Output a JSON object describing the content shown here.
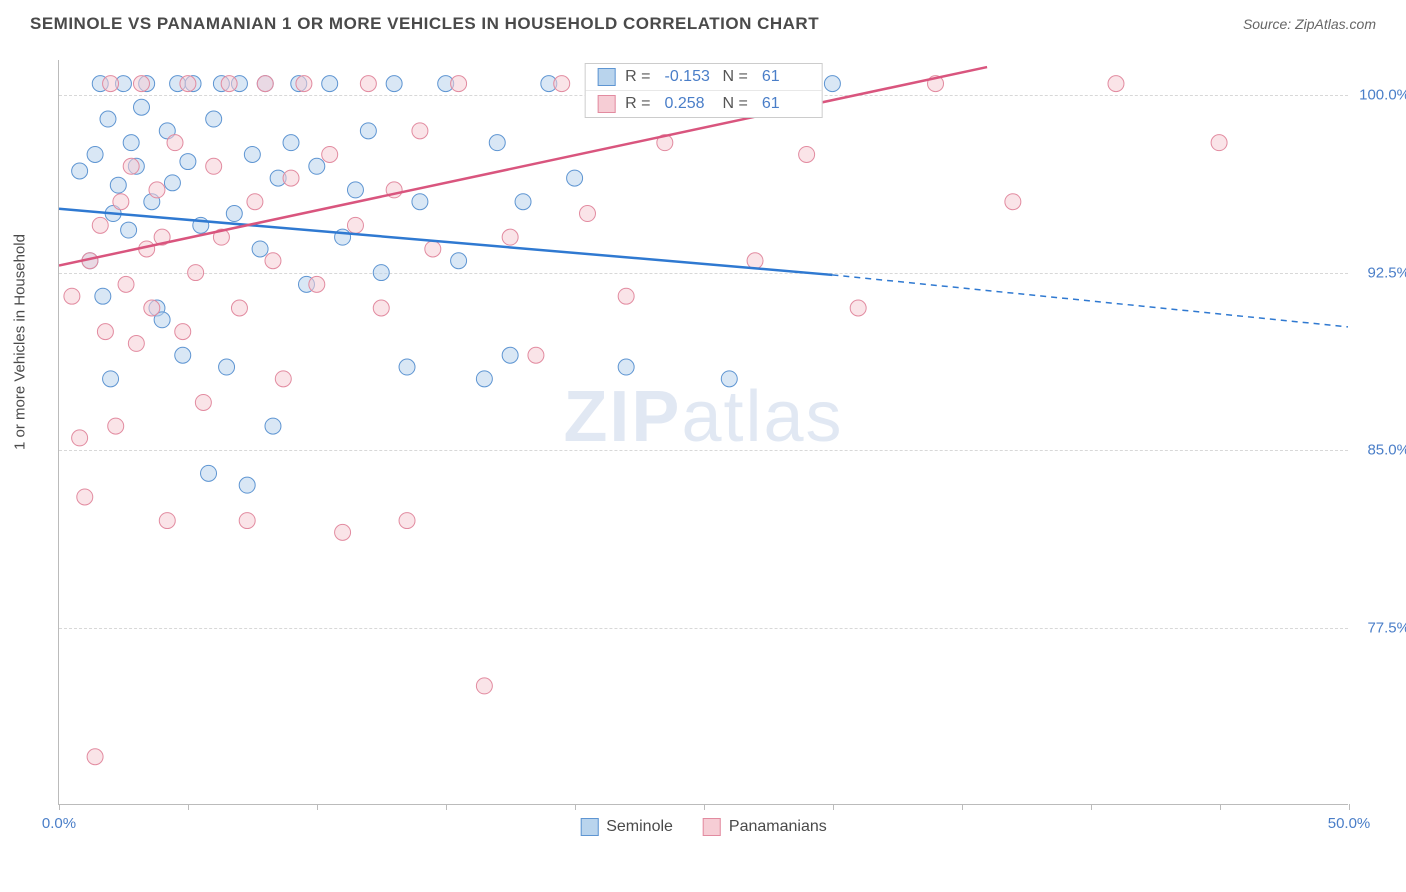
{
  "title": "SEMINOLE VS PANAMANIAN 1 OR MORE VEHICLES IN HOUSEHOLD CORRELATION CHART",
  "source": "Source: ZipAtlas.com",
  "y_axis_label": "1 or more Vehicles in Household",
  "watermark_bold": "ZIP",
  "watermark_light": "atlas",
  "chart": {
    "type": "scatter",
    "xlim": [
      0,
      50
    ],
    "ylim": [
      70,
      101.5
    ],
    "xtick_positions": [
      0,
      5,
      10,
      15,
      20,
      25,
      30,
      35,
      40,
      45,
      50
    ],
    "xtick_labels": {
      "0": "0.0%",
      "50": "50.0%"
    },
    "ytick_positions": [
      77.5,
      85.0,
      92.5,
      100.0
    ],
    "ytick_labels": [
      "77.5%",
      "85.0%",
      "92.5%",
      "100.0%"
    ],
    "background_color": "#ffffff",
    "grid_color": "#d8d8d8",
    "axis_color": "#bbbbbb",
    "marker_radius": 8,
    "marker_opacity": 0.55,
    "series": [
      {
        "name": "Seminole",
        "fill": "#b9d4ed",
        "stroke": "#5e95d2",
        "R": "-0.153",
        "N": "61",
        "trend": {
          "x1": 0,
          "y1": 95.2,
          "x2": 30,
          "y2": 92.4,
          "x2_ext": 50,
          "y2_ext": 90.2,
          "color": "#2f79d1",
          "width": 2.5
        },
        "points": [
          [
            0.8,
            96.8
          ],
          [
            1.2,
            93.0
          ],
          [
            1.4,
            97.5
          ],
          [
            1.6,
            100.5
          ],
          [
            1.7,
            91.5
          ],
          [
            1.9,
            99.0
          ],
          [
            2.0,
            88.0
          ],
          [
            2.1,
            95.0
          ],
          [
            2.3,
            96.2
          ],
          [
            2.5,
            100.5
          ],
          [
            2.7,
            94.3
          ],
          [
            2.8,
            98.0
          ],
          [
            3.0,
            97.0
          ],
          [
            3.2,
            99.5
          ],
          [
            3.4,
            100.5
          ],
          [
            3.6,
            95.5
          ],
          [
            3.8,
            91.0
          ],
          [
            4.0,
            90.5
          ],
          [
            4.2,
            98.5
          ],
          [
            4.4,
            96.3
          ],
          [
            4.6,
            100.5
          ],
          [
            4.8,
            89.0
          ],
          [
            5.0,
            97.2
          ],
          [
            5.2,
            100.5
          ],
          [
            5.5,
            94.5
          ],
          [
            5.8,
            84.0
          ],
          [
            6.0,
            99.0
          ],
          [
            6.3,
            100.5
          ],
          [
            6.5,
            88.5
          ],
          [
            6.8,
            95.0
          ],
          [
            7.0,
            100.5
          ],
          [
            7.3,
            83.5
          ],
          [
            7.5,
            97.5
          ],
          [
            7.8,
            93.5
          ],
          [
            8.0,
            100.5
          ],
          [
            8.3,
            86.0
          ],
          [
            8.5,
            96.5
          ],
          [
            9.0,
            98.0
          ],
          [
            9.3,
            100.5
          ],
          [
            9.6,
            92.0
          ],
          [
            10.0,
            97.0
          ],
          [
            10.5,
            100.5
          ],
          [
            11.0,
            94.0
          ],
          [
            11.5,
            96.0
          ],
          [
            12.0,
            98.5
          ],
          [
            12.5,
            92.5
          ],
          [
            13.0,
            100.5
          ],
          [
            13.5,
            88.5
          ],
          [
            14.0,
            95.5
          ],
          [
            15.0,
            100.5
          ],
          [
            15.5,
            93.0
          ],
          [
            16.5,
            88.0
          ],
          [
            17.0,
            98.0
          ],
          [
            17.5,
            89.0
          ],
          [
            18.0,
            95.5
          ],
          [
            19.0,
            100.5
          ],
          [
            20.0,
            96.5
          ],
          [
            22.0,
            88.5
          ],
          [
            24.0,
            100.5
          ],
          [
            26.0,
            88.0
          ],
          [
            30.0,
            100.5
          ]
        ]
      },
      {
        "name": "Panamanians",
        "fill": "#f6cdd5",
        "stroke": "#e28ba0",
        "R": "0.258",
        "N": "61",
        "trend": {
          "x1": 0,
          "y1": 92.8,
          "x2": 36,
          "y2": 101.2,
          "x2_ext": 36,
          "y2_ext": 101.2,
          "color": "#d9557e",
          "width": 2.5
        },
        "points": [
          [
            0.5,
            91.5
          ],
          [
            0.8,
            85.5
          ],
          [
            1.0,
            83.0
          ],
          [
            1.2,
            93.0
          ],
          [
            1.4,
            72.0
          ],
          [
            1.6,
            94.5
          ],
          [
            1.8,
            90.0
          ],
          [
            2.0,
            100.5
          ],
          [
            2.2,
            86.0
          ],
          [
            2.4,
            95.5
          ],
          [
            2.6,
            92.0
          ],
          [
            2.8,
            97.0
          ],
          [
            3.0,
            89.5
          ],
          [
            3.2,
            100.5
          ],
          [
            3.4,
            93.5
          ],
          [
            3.6,
            91.0
          ],
          [
            3.8,
            96.0
          ],
          [
            4.0,
            94.0
          ],
          [
            4.2,
            82.0
          ],
          [
            4.5,
            98.0
          ],
          [
            4.8,
            90.0
          ],
          [
            5.0,
            100.5
          ],
          [
            5.3,
            92.5
          ],
          [
            5.6,
            87.0
          ],
          [
            6.0,
            97.0
          ],
          [
            6.3,
            94.0
          ],
          [
            6.6,
            100.5
          ],
          [
            7.0,
            91.0
          ],
          [
            7.3,
            82.0
          ],
          [
            7.6,
            95.5
          ],
          [
            8.0,
            100.5
          ],
          [
            8.3,
            93.0
          ],
          [
            8.7,
            88.0
          ],
          [
            9.0,
            96.5
          ],
          [
            9.5,
            100.5
          ],
          [
            10.0,
            92.0
          ],
          [
            10.5,
            97.5
          ],
          [
            11.0,
            81.5
          ],
          [
            11.5,
            94.5
          ],
          [
            12.0,
            100.5
          ],
          [
            12.5,
            91.0
          ],
          [
            13.0,
            96.0
          ],
          [
            13.5,
            82.0
          ],
          [
            14.0,
            98.5
          ],
          [
            14.5,
            93.5
          ],
          [
            15.5,
            100.5
          ],
          [
            16.5,
            75.0
          ],
          [
            17.5,
            94.0
          ],
          [
            18.5,
            89.0
          ],
          [
            19.5,
            100.5
          ],
          [
            20.5,
            95.0
          ],
          [
            22.0,
            91.5
          ],
          [
            23.5,
            98.0
          ],
          [
            25.0,
            100.5
          ],
          [
            27.0,
            93.0
          ],
          [
            29.0,
            97.5
          ],
          [
            31.0,
            91.0
          ],
          [
            34.0,
            100.5
          ],
          [
            37.0,
            95.5
          ],
          [
            41.0,
            100.5
          ],
          [
            45.0,
            98.0
          ]
        ]
      }
    ]
  },
  "bottom_legend": [
    {
      "label": "Seminole",
      "fill": "#b9d4ed",
      "stroke": "#5e95d2"
    },
    {
      "label": "Panamanians",
      "fill": "#f6cdd5",
      "stroke": "#e28ba0"
    }
  ],
  "stats_label_R": "R =",
  "stats_label_N": "N ="
}
